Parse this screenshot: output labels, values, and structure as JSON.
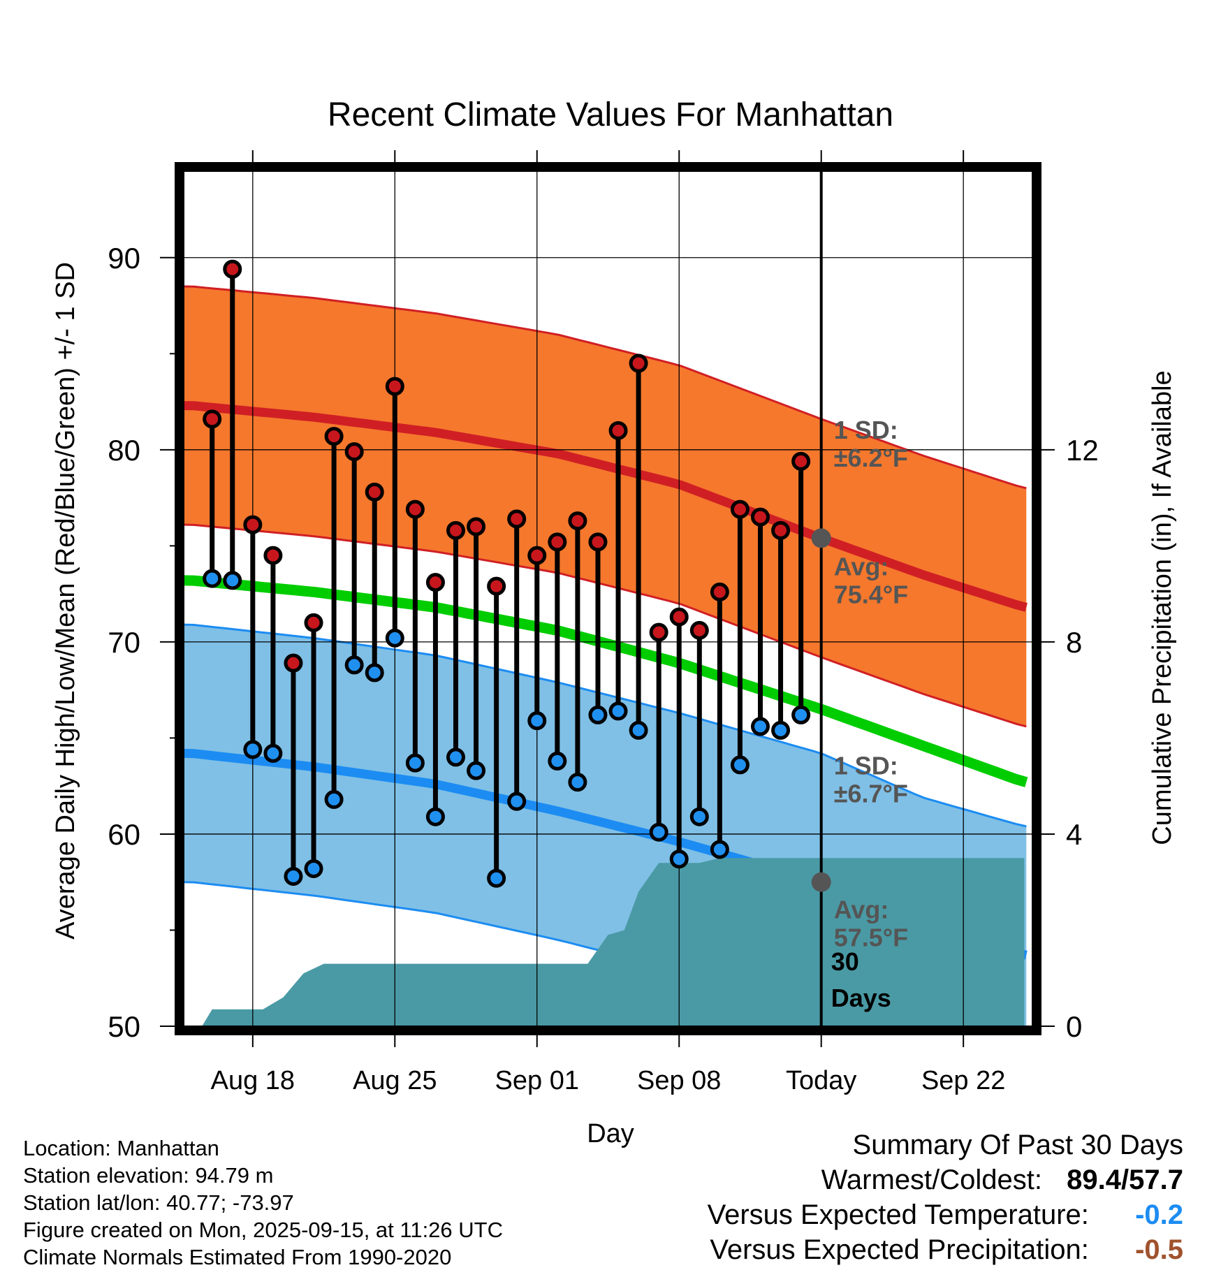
{
  "chart_data": {
    "type": "line",
    "title": "Recent Climate Values For Manhattan",
    "xlabel": "Day",
    "ylabel": "Average Daily High/Low/Mean (Red/Blue/Green) +/- 1 SD",
    "y2label": "Cumulative Precipitation (in), If Available",
    "ylim": [
      50,
      94.5
    ],
    "y2lim": [
      0,
      17.8
    ],
    "xlim": [
      -0.4,
      41.4
    ],
    "x_ticks": [
      {
        "x": 3,
        "label": "Aug 18"
      },
      {
        "x": 10,
        "label": "Aug 25"
      },
      {
        "x": 17,
        "label": "Sep 01"
      },
      {
        "x": 24,
        "label": "Sep 08"
      },
      {
        "x": 31,
        "label": "Today"
      },
      {
        "x": 38,
        "label": "Sep 22"
      }
    ],
    "y_ticks": [
      50,
      60,
      70,
      80,
      90
    ],
    "y2_ticks": [
      0,
      4,
      8,
      12
    ],
    "today_x": 31,
    "period_label": [
      "30",
      "Days"
    ],
    "normals": {
      "days": [
        0,
        6,
        12,
        18,
        24,
        31,
        36,
        41
      ],
      "avg_high": [
        82.3,
        81.7,
        80.9,
        79.8,
        78.2,
        75.4,
        73.5,
        71.8
      ],
      "avg_low": [
        64.2,
        63.5,
        62.6,
        61.2,
        59.6,
        57.5,
        55.2,
        53.7
      ],
      "avg_mean": [
        73.2,
        72.6,
        71.8,
        70.6,
        68.9,
        66.5,
        64.6,
        62.7
      ],
      "high_sd": 6.2,
      "low_sd": 6.7
    },
    "annotations": {
      "high_sd_label": [
        "1 SD:",
        "±6.2°F"
      ],
      "high_avg_label": [
        "Avg:",
        "75.4°F"
      ],
      "low_sd_label": [
        "1 SD:",
        "±6.7°F"
      ],
      "low_avg_label": [
        "Avg:",
        "57.5°F"
      ],
      "today_high": 75.4,
      "today_low": 57.5
    },
    "observed": {
      "days": [
        1,
        2,
        3,
        4,
        5,
        6,
        7,
        8,
        9,
        10,
        11,
        12,
        13,
        14,
        15,
        16,
        17,
        18,
        19,
        20,
        21,
        22,
        23,
        24,
        25,
        26,
        27,
        28,
        29,
        30
      ],
      "high": [
        81.6,
        89.4,
        76.1,
        74.5,
        68.9,
        71.0,
        80.7,
        79.9,
        77.8,
        83.3,
        76.9,
        73.1,
        75.8,
        76.0,
        72.9,
        76.4,
        74.5,
        75.2,
        76.3,
        75.2,
        81.0,
        84.5,
        70.5,
        71.3,
        70.6,
        72.6,
        76.9,
        76.5,
        75.8,
        79.4
      ],
      "low": [
        73.3,
        73.2,
        64.4,
        64.2,
        57.8,
        58.2,
        61.8,
        68.8,
        68.4,
        70.2,
        63.7,
        60.9,
        64.0,
        63.3,
        57.7,
        61.7,
        65.9,
        63.8,
        62.7,
        66.2,
        66.4,
        65.4,
        60.1,
        58.7,
        60.9,
        59.2,
        63.6,
        65.6,
        65.4,
        66.2
      ]
    },
    "precipitation": {
      "x": [
        0.5,
        1.0,
        3.0,
        3.5,
        4.5,
        5.5,
        6.5,
        7.0,
        16.0,
        19.5,
        20.5,
        21.3,
        22.0,
        23.0,
        24.0,
        25.0,
        26.0,
        41.0
      ],
      "cumulative": [
        0.0,
        0.35,
        0.35,
        0.35,
        0.6,
        1.1,
        1.3,
        1.3,
        1.3,
        1.3,
        1.9,
        2.0,
        2.8,
        3.4,
        3.4,
        3.4,
        3.5,
        3.5
      ]
    },
    "grid": true,
    "colors": {
      "high_band": "#f5782d",
      "high_line": "#d01f24",
      "low_band": "#80c0e6",
      "low_line": "#1c8cf2",
      "mean_line": "#00cc00",
      "precip": "#4a9aa5",
      "high_marker": "#c8161d",
      "low_marker": "#2090f0",
      "annotation": "#555555"
    }
  },
  "station_info": [
    "Location: Manhattan",
    "Station elevation: 94.79 m",
    "Station lat/lon: 40.77; -73.97",
    "Figure created on Mon, 2025-09-15, at 11:26 UTC",
    "Climate Normals Estimated From 1990-2020"
  ],
  "summary": {
    "heading": "Summary Of Past 30 Days",
    "warmest_coldest_label": "Warmest/Coldest:",
    "warmest": "89.4",
    "separator": "/",
    "coldest": "57.7",
    "temp_label": "Versus Expected Temperature:",
    "temp_value": "-0.2",
    "precip_label": "Versus Expected Precipitation:",
    "precip_value": "-0.5",
    "temp_color": "#1c8cf2",
    "precip_color": "#a0522d"
  }
}
